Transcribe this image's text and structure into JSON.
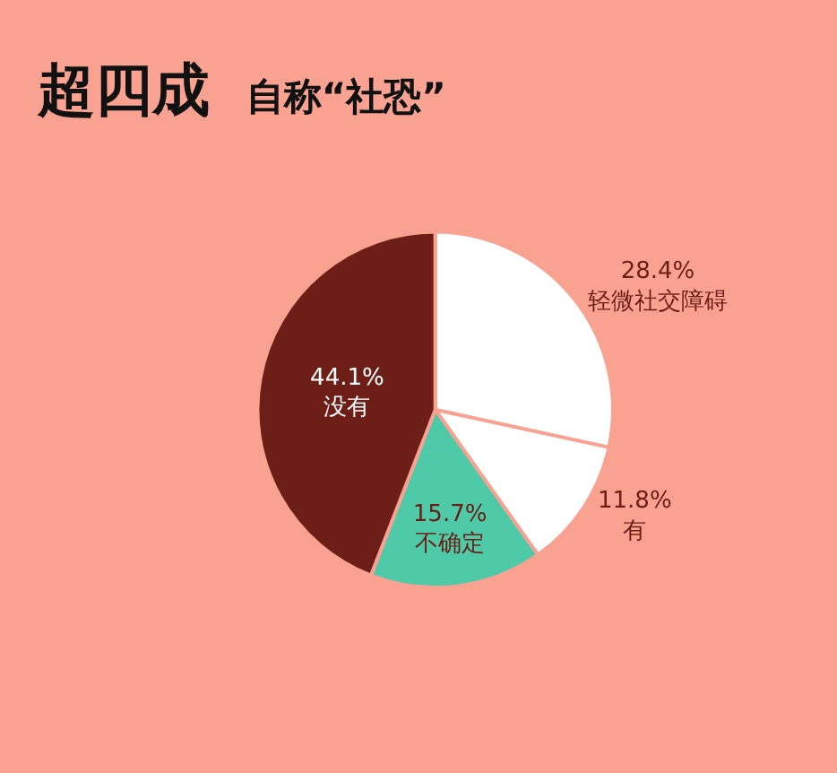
{
  "chart_data": {
    "type": "pie",
    "title": "超四成",
    "subtitle": "自称“社恐”",
    "categories": [
      "轻微社交障碍",
      "有",
      "不确定",
      "没有"
    ],
    "values": [
      28.4,
      11.8,
      15.7,
      44.1
    ],
    "value_labels": [
      "28.4%",
      "11.8%",
      "15.7%",
      "44.1%"
    ],
    "colors": [
      "#ffffff",
      "#ffffff",
      "#4ecaa8",
      "#6d1f17"
    ],
    "legend": false
  }
}
